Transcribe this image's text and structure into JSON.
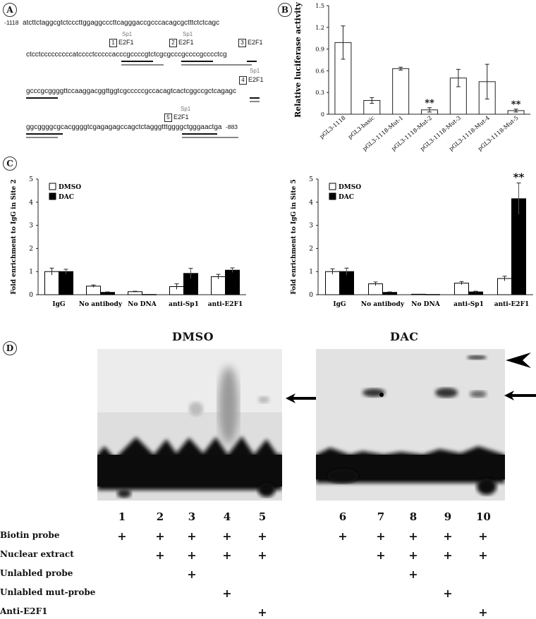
{
  "panelA": {
    "letter": "A",
    "start_coord": "-1118",
    "end_coord": "-883",
    "lines": [
      "atcttctaggcgtctcccttggaggcccttcagggaccgcccacagcgctttctctcagc",
      "ctcctcccccccccatcccctcccccacccgccccgtctcgcgcccgccccgcccctcg",
      "gcccgcggggttccaaggacggttggtcgcccccgccacagtcactcggccgctcagagc",
      "ggcggggcgcacggggtcgagagagccagctctagggtttggggctgggaactga"
    ],
    "sites": [
      {
        "num": "1",
        "label": "E2F1",
        "sp1": "Sp1"
      },
      {
        "num": "2",
        "label": "E2F1",
        "sp1": "Sp1"
      },
      {
        "num": "3",
        "label": "E2F1"
      },
      {
        "num": "4",
        "label": "E2F1",
        "sp1": "Sp1"
      },
      {
        "num": "5",
        "label": "E2F1",
        "sp1": "Sp1"
      }
    ]
  },
  "panelB": {
    "letter": "B"
  },
  "panelC": {
    "letter": "C"
  },
  "panelD": {
    "letter": "D",
    "title_left": "DMSO",
    "title_right": "DAC",
    "lanes": [
      "1",
      "2",
      "3",
      "4",
      "5",
      "6",
      "7",
      "8",
      "9",
      "10"
    ],
    "rows": [
      {
        "label": "Biotin probe",
        "marks": [
          1,
          1,
          1,
          1,
          1,
          1,
          1,
          1,
          1,
          1
        ]
      },
      {
        "label": "Nuclear extract",
        "marks": [
          0,
          1,
          1,
          1,
          1,
          0,
          1,
          1,
          1,
          1
        ]
      },
      {
        "label": "Unlabled probe",
        "marks": [
          0,
          0,
          1,
          0,
          0,
          0,
          0,
          1,
          0,
          0
        ]
      },
      {
        "label": "Unlabled mut-probe",
        "marks": [
          0,
          0,
          0,
          1,
          0,
          0,
          0,
          0,
          1,
          0
        ]
      },
      {
        "label": "Anti-E2F1",
        "marks": [
          0,
          0,
          0,
          0,
          1,
          0,
          0,
          0,
          0,
          1
        ]
      }
    ],
    "plus_symbol": "+"
  },
  "chart_data": [
    {
      "type": "bar",
      "categories": [
        "pGL3-1118",
        "pGL3-basic",
        "pGL3-1118-Mut-1",
        "pGL3-1118-Mut-2",
        "pGL3-1118-Mut-3",
        "pGL3-1118-Mut-4",
        "pGL3-1118-Mut-5"
      ],
      "values": [
        0.99,
        0.19,
        0.63,
        0.06,
        0.5,
        0.45,
        0.05
      ],
      "errors": [
        0.23,
        0.04,
        0.02,
        0.03,
        0.12,
        0.24,
        0.02
      ],
      "annotations": [
        "",
        "",
        "",
        "**",
        "",
        "",
        "**"
      ],
      "ylabel": "Relative luciferase activity",
      "ylim": [
        0,
        1.5
      ],
      "yticks": [
        "0",
        "0.3",
        "0.6",
        "0.9",
        "1.2",
        "1.5"
      ],
      "grid": false
    },
    {
      "type": "bar",
      "categories": [
        "IgG",
        "No antibody",
        "No DNA",
        "anti-Sp1",
        "anti-E2F1"
      ],
      "series": [
        {
          "name": "DMSO",
          "values": [
            1.0,
            0.37,
            0.13,
            0.35,
            0.78
          ],
          "errors": [
            0.15,
            0.05,
            0.02,
            0.12,
            0.1
          ]
        },
        {
          "name": "DAC",
          "values": [
            1.0,
            0.1,
            0.01,
            0.92,
            1.06
          ],
          "errors": [
            0.1,
            0.02,
            0.01,
            0.22,
            0.1
          ]
        }
      ],
      "ylabel": "Fold enrichment to IgG in Site 2",
      "ylim": [
        0,
        5
      ],
      "yticks": [
        "0",
        "1",
        "2",
        "3",
        "4",
        "5"
      ],
      "legend_position": "top-left",
      "grid": false
    },
    {
      "type": "bar",
      "categories": [
        "IgG",
        "No antibody",
        "No DNA",
        "anti-Sp1",
        "anti-E2F1"
      ],
      "series": [
        {
          "name": "DMSO",
          "values": [
            1.0,
            0.47,
            0.02,
            0.5,
            0.7
          ],
          "errors": [
            0.12,
            0.08,
            0.01,
            0.07,
            0.1
          ]
        },
        {
          "name": "DAC",
          "values": [
            1.0,
            0.1,
            0.01,
            0.12,
            4.15
          ],
          "errors": [
            0.15,
            0.02,
            0.01,
            0.03,
            0.68
          ]
        }
      ],
      "annotations": [
        "",
        "",
        "",
        "",
        "**"
      ],
      "ylabel": "Fold enrichment to IgG in Site 5",
      "ylim": [
        0,
        5
      ],
      "yticks": [
        "0",
        "1",
        "2",
        "3",
        "4",
        "5"
      ],
      "legend_position": "top-left",
      "grid": false
    }
  ]
}
